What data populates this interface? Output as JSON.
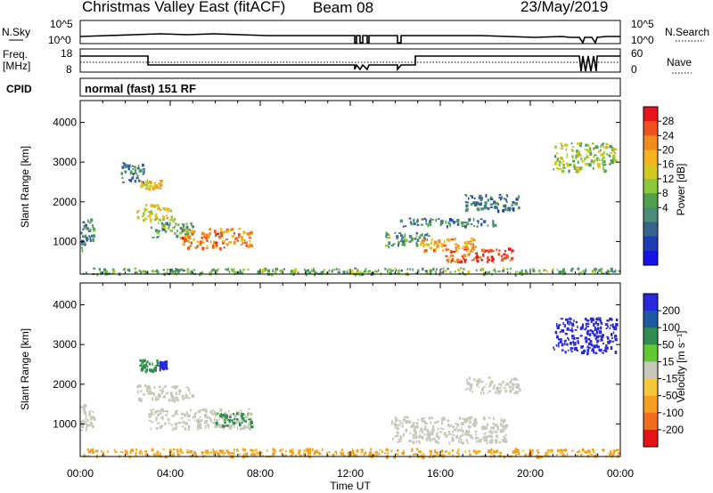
{
  "header": {
    "title": "Christmas Valley East (fitACF)",
    "beam": "Beam 08",
    "date": "23/May/2019"
  },
  "sky_panel": {
    "label": "N.Sky",
    "right_label": "N.Search",
    "left_ticks": [
      "10^5",
      "10^0"
    ],
    "right_ticks": [
      "10^5",
      "10^0"
    ]
  },
  "freq_panel": {
    "label_line1": "Freq.",
    "label_line2": "[MHz]",
    "right_label": "Nave",
    "left_ticks": [
      "18",
      "8"
    ],
    "right_ticks": [
      "60",
      "0"
    ]
  },
  "cpid": {
    "label": "CPID",
    "value": "normal (fast) 151 RF"
  },
  "axes": {
    "xlabel": "Time UT",
    "xticks": [
      "00:00",
      "04:00",
      "08:00",
      "12:00",
      "16:00",
      "20:00",
      "00:00"
    ],
    "ylabel": "Slant Range [km]",
    "yticks": [
      "1000",
      "2000",
      "3000",
      "4000"
    ]
  },
  "power_colorbar": {
    "label": "Power [dB]",
    "ticks": [
      "28",
      "24",
      "20",
      "16",
      "12",
      "8",
      "4"
    ],
    "colors": [
      "#e8141e",
      "#f0501e",
      "#f08c1e",
      "#f5b41e",
      "#d2c81e",
      "#8cc83c",
      "#50a050",
      "#4b8c78",
      "#37648c",
      "#1e3cb4",
      "#1414e6"
    ]
  },
  "velocity_colorbar": {
    "label": "Velocity [m s⁻¹]",
    "ticks": [
      "200",
      "100",
      "50",
      "15",
      "-15",
      "-50",
      "-100",
      "-200"
    ],
    "colors": [
      "#2828dc",
      "#1e5aa0",
      "#328c50",
      "#64c832",
      "#c8c8bc",
      "#f5c83c",
      "#f5a01e",
      "#f06e1e",
      "#e61414"
    ]
  },
  "chart_data": [
    {
      "type": "heatmap",
      "title": "Power",
      "xlabel": "Time UT",
      "ylabel": "Slant Range [km]",
      "xlim": [
        0,
        24
      ],
      "ylim": [
        180,
        4550
      ],
      "value_range": [
        0,
        30
      ],
      "regions": [
        {
          "t": [
            0.0,
            0.6
          ],
          "r": [
            800,
            1600
          ],
          "v": 9
        },
        {
          "t": [
            1.8,
            2.8
          ],
          "r": [
            2500,
            3000
          ],
          "v": 9
        },
        {
          "t": [
            2.6,
            3.6
          ],
          "r": [
            2350,
            2600
          ],
          "v": 20
        },
        {
          "t": [
            2.5,
            4.2
          ],
          "r": [
            1550,
            1950
          ],
          "v": 19
        },
        {
          "t": [
            3.0,
            5.0
          ],
          "r": [
            1100,
            1500
          ],
          "v": 12
        },
        {
          "t": [
            4.5,
            7.6
          ],
          "r": [
            850,
            1350
          ],
          "v": 24
        },
        {
          "t": [
            13.5,
            15.5
          ],
          "r": [
            900,
            1250
          ],
          "v": 11
        },
        {
          "t": [
            15.0,
            17.5
          ],
          "r": [
            750,
            1100
          ],
          "v": 22
        },
        {
          "t": [
            16.2,
            19.2
          ],
          "r": [
            500,
            850
          ],
          "v": 27
        },
        {
          "t": [
            14.0,
            18.5
          ],
          "r": [
            1400,
            1600
          ],
          "v": 8
        },
        {
          "t": [
            17.0,
            19.5
          ],
          "r": [
            1800,
            2200
          ],
          "v": 7
        },
        {
          "t": [
            21.0,
            23.8
          ],
          "r": [
            2800,
            3500
          ],
          "v": 15
        },
        {
          "t": [
            0.0,
            24.0
          ],
          "r": [
            200,
            350
          ],
          "v": 12
        }
      ]
    },
    {
      "type": "heatmap",
      "title": "Velocity",
      "xlabel": "Time UT",
      "ylabel": "Slant Range [km]",
      "xlim": [
        0,
        24
      ],
      "ylim": [
        180,
        4550
      ],
      "value_range": [
        -200,
        200
      ],
      "regions": [
        {
          "t": [
            0.0,
            0.6
          ],
          "r": [
            850,
            1500
          ],
          "v": 0
        },
        {
          "t": [
            2.6,
            3.4
          ],
          "r": [
            2350,
            2650
          ],
          "v": 40
        },
        {
          "t": [
            3.5,
            3.8
          ],
          "r": [
            2400,
            2600
          ],
          "v": 180
        },
        {
          "t": [
            2.5,
            5.0
          ],
          "r": [
            1600,
            2000
          ],
          "v": 0
        },
        {
          "t": [
            3.0,
            7.6
          ],
          "r": [
            900,
            1400
          ],
          "v": 0
        },
        {
          "t": [
            6.0,
            7.6
          ],
          "r": [
            950,
            1300
          ],
          "v": 40
        },
        {
          "t": [
            13.8,
            19.0
          ],
          "r": [
            550,
            1200
          ],
          "v": 0
        },
        {
          "t": [
            17.0,
            19.5
          ],
          "r": [
            1800,
            2200
          ],
          "v": 0
        },
        {
          "t": [
            21.0,
            23.8
          ],
          "r": [
            2800,
            3700
          ],
          "v": 200
        },
        {
          "t": [
            0.0,
            24.0
          ],
          "r": [
            200,
            400
          ],
          "v": -40
        }
      ]
    }
  ]
}
